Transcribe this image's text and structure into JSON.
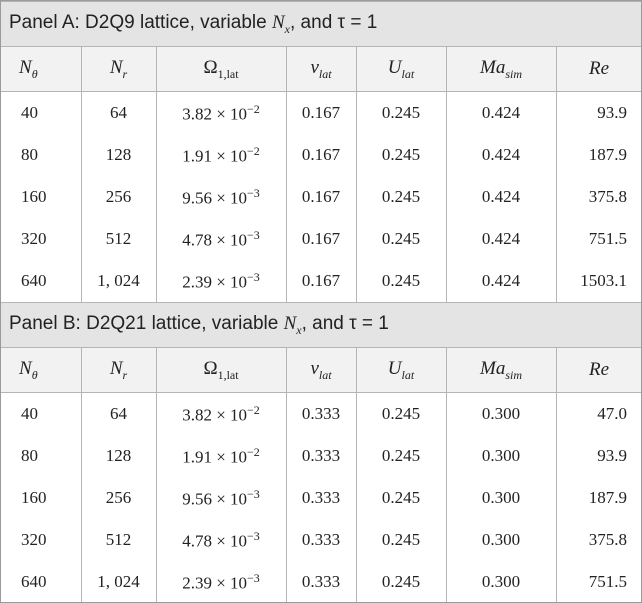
{
  "panels": [
    {
      "title": {
        "before": "Panel A: D2Q9 lattice, variable ",
        "var": "N",
        "sub": "x",
        "after": ", and τ = 1"
      },
      "headers": [
        {
          "main": "N",
          "sub": "θ"
        },
        {
          "main": "N",
          "sub": "r"
        },
        {
          "main": "Ω",
          "sub": "1,lat"
        },
        {
          "main": "ν",
          "sub": "lat"
        },
        {
          "main": "U",
          "sub": "lat"
        },
        {
          "main": "Ma",
          "sub": "sim"
        },
        {
          "main": "Re"
        }
      ],
      "rows": [
        [
          "40",
          "64",
          {
            "mantissa": "3.82 × 10",
            "exp": "−2"
          },
          "0.167",
          "0.245",
          "0.424",
          "93.9"
        ],
        [
          "80",
          "128",
          {
            "mantissa": "1.91 × 10",
            "exp": "−2"
          },
          "0.167",
          "0.245",
          "0.424",
          "187.9"
        ],
        [
          "160",
          "256",
          {
            "mantissa": "9.56 × 10",
            "exp": "−3"
          },
          "0.167",
          "0.245",
          "0.424",
          "375.8"
        ],
        [
          "320",
          "512",
          {
            "mantissa": "4.78 × 10",
            "exp": "−3"
          },
          "0.167",
          "0.245",
          "0.424",
          "751.5"
        ],
        [
          "640",
          "1, 024",
          {
            "mantissa": "2.39 × 10",
            "exp": "−3"
          },
          "0.167",
          "0.245",
          "0.424",
          "1503.1"
        ]
      ]
    },
    {
      "title": {
        "before": "Panel B: D2Q21 lattice, variable ",
        "var": "N",
        "sub": "x",
        "after": ", and τ = 1"
      },
      "headers": [
        {
          "main": "N",
          "sub": "θ"
        },
        {
          "main": "N",
          "sub": "r"
        },
        {
          "main": "Ω",
          "sub": "1,lat"
        },
        {
          "main": "ν",
          "sub": "lat"
        },
        {
          "main": "U",
          "sub": "lat"
        },
        {
          "main": "Ma",
          "sub": "sim"
        },
        {
          "main": "Re"
        }
      ],
      "rows": [
        [
          "40",
          "64",
          {
            "mantissa": "3.82 × 10",
            "exp": "−2"
          },
          "0.333",
          "0.245",
          "0.300",
          "47.0"
        ],
        [
          "80",
          "128",
          {
            "mantissa": "1.91 × 10",
            "exp": "−2"
          },
          "0.333",
          "0.245",
          "0.300",
          "93.9"
        ],
        [
          "160",
          "256",
          {
            "mantissa": "9.56 × 10",
            "exp": "−3"
          },
          "0.333",
          "0.245",
          "0.300",
          "187.9"
        ],
        [
          "320",
          "512",
          {
            "mantissa": "4.78 × 10",
            "exp": "−3"
          },
          "0.333",
          "0.245",
          "0.300",
          "375.8"
        ],
        [
          "640",
          "1, 024",
          {
            "mantissa": "2.39 × 10",
            "exp": "−3"
          },
          "0.333",
          "0.245",
          "0.300",
          "751.5"
        ]
      ]
    }
  ]
}
